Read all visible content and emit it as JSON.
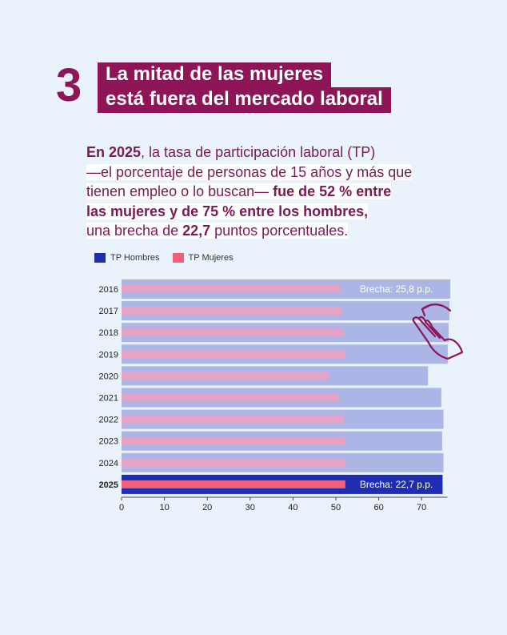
{
  "header": {
    "number": "3",
    "title_line1": "La mitad de las mujeres",
    "title_line2": "está fuera del mercado laboral"
  },
  "body": {
    "l1a": "En 2025",
    "l1b": ", la tasa de participación laboral (TP)",
    "l2": "—el porcentaje de personas de 15 años y más que",
    "l3a": "tienen empleo o lo buscan— ",
    "l3b": "fue de 52 % entre",
    "l4": "las mujeres y de 75 % entre los hombres,",
    "l5a": "una brecha de ",
    "l5b": "22,7",
    "l5c": " puntos porcentuales."
  },
  "legend": {
    "men": "TP Hombres",
    "women": "TP Mujeres"
  },
  "colors": {
    "brand": "#8e1558",
    "men_bar": "#abb6e6",
    "men_bar_highlight": "#1f2db0",
    "women_bar": "#e5a3c6",
    "women_bar_highlight": "#f0607a",
    "background": "#eaf3fb"
  },
  "icons": [
    "hand-swipe-icon"
  ],
  "chart_data": {
    "type": "bar",
    "orientation": "horizontal",
    "categories": [
      "2016",
      "2017",
      "2018",
      "2019",
      "2020",
      "2021",
      "2022",
      "2023",
      "2024",
      "2025"
    ],
    "series": [
      {
        "name": "TP Hombres",
        "values": [
          76.7,
          76.5,
          76.3,
          76.1,
          71.5,
          74.6,
          75.1,
          74.8,
          75.1,
          74.9
        ]
      },
      {
        "name": "TP Mujeres",
        "values": [
          51.0,
          51.4,
          51.9,
          52.2,
          48.3,
          50.7,
          51.9,
          52.2,
          52.3,
          52.2
        ]
      }
    ],
    "annotations": [
      {
        "category": "2016",
        "text": "Brecha: 25,8 p.p."
      },
      {
        "category": "2025",
        "text": "Brecha: 22,7 p.p."
      }
    ],
    "highlight_category": "2025",
    "xticks": [
      0,
      10,
      20,
      30,
      40,
      50,
      60,
      70
    ],
    "xlim": [
      0,
      76
    ],
    "grid": false,
    "legend_position": "top-left"
  }
}
